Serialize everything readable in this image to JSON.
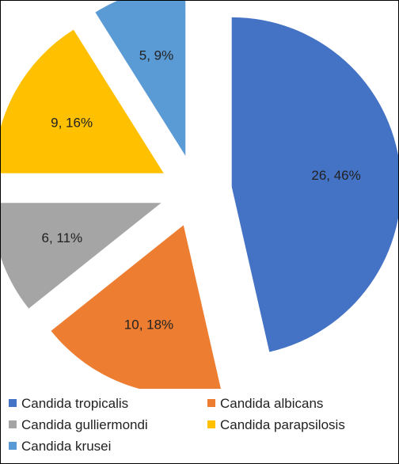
{
  "chart_data": {
    "type": "pie",
    "title": "",
    "slices": [
      {
        "name": "Candida tropicalis",
        "value": 26,
        "label": "26, 46%",
        "color": "#4472C4"
      },
      {
        "name": "Candida albicans",
        "value": 10,
        "label": "10, 18%",
        "color": "#ED7D31"
      },
      {
        "name": "Candida gulliermondi",
        "value": 6,
        "label": "6, 11%",
        "color": "#A5A5A5"
      },
      {
        "name": "Candida parapsilosis",
        "value": 9,
        "label": "9, 16%",
        "color": "#FFC000"
      },
      {
        "name": "Candida krusei",
        "value": 5,
        "label": "5, 9%",
        "color": "#5B9BD5"
      }
    ],
    "exploded": true,
    "legend_position": "bottom"
  }
}
